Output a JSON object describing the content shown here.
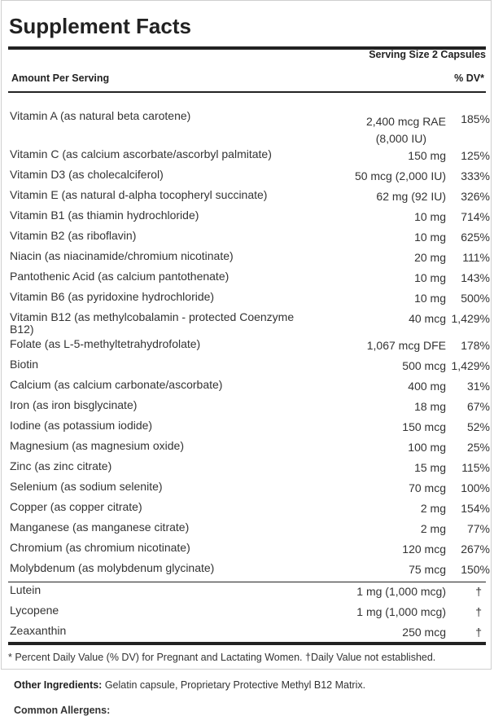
{
  "title": "Supplement Facts",
  "serving_size": "Serving Size 2 Capsules",
  "header": {
    "amount_per_serving": "Amount Per Serving",
    "dv": "% DV*"
  },
  "nutrients": [
    {
      "name": "Vitamin A (as natural beta carotene)",
      "amount": "2,400 mcg RAE",
      "amount2": "(8,000 IU)",
      "dv": "185%"
    },
    {
      "name": "Vitamin C (as calcium ascorbate/ascorbyl palmitate)",
      "amount": "150 mg",
      "dv": "125%"
    },
    {
      "name": "Vitamin D3 (as cholecalciferol)",
      "amount": "50 mcg (2,000 IU)",
      "dv": "333%"
    },
    {
      "name": "Vitamin E (as natural d-alpha tocopheryl succinate)",
      "amount": "62 mg (92 IU)",
      "dv": "326%"
    },
    {
      "name": "Vitamin B1 (as thiamin hydrochloride)",
      "amount": "10 mg",
      "dv": "714%"
    },
    {
      "name": "Vitamin B2 (as riboflavin)",
      "amount": "10 mg",
      "dv": "625%"
    },
    {
      "name": "Niacin (as niacinamide/chromium nicotinate)",
      "amount": "20 mg",
      "dv": "111%"
    },
    {
      "name": "Pantothenic Acid (as calcium pantothenate)",
      "amount": "10 mg",
      "dv": "143%"
    },
    {
      "name": "Vitamin B6 (as pyridoxine hydrochloride)",
      "amount": "10 mg",
      "dv": "500%"
    },
    {
      "name": "Vitamin B12 (as methylcobalamin - protected Coenzyme B12)",
      "amount": "40 mcg",
      "dv": "1,429%"
    },
    {
      "name": "Folate (as L-5-methyltetrahydrofolate)",
      "amount": "1,067 mcg DFE",
      "dv": "178%"
    },
    {
      "name": "Biotin",
      "amount": "500 mcg",
      "dv": "1,429%"
    },
    {
      "name": "Calcium (as calcium carbonate/ascorbate)",
      "amount": "400 mg",
      "dv": "31%"
    },
    {
      "name": "Iron (as iron bisglycinate)",
      "amount": "18 mg",
      "dv": "67%"
    },
    {
      "name": "Iodine (as potassium iodide)",
      "amount": "150 mcg",
      "dv": "52%"
    },
    {
      "name": "Magnesium (as magnesium oxide)",
      "amount": "100 mg",
      "dv": "25%"
    },
    {
      "name": "Zinc (as zinc citrate)",
      "amount": "15 mg",
      "dv": "115%"
    },
    {
      "name": "Selenium (as sodium selenite)",
      "amount": "70 mcg",
      "dv": "100%"
    },
    {
      "name": "Copper (as copper citrate)",
      "amount": "2 mg",
      "dv": "154%"
    },
    {
      "name": "Manganese (as manganese citrate)",
      "amount": "2 mg",
      "dv": "77%"
    },
    {
      "name": "Chromium (as chromium nicotinate)",
      "amount": "120 mcg",
      "dv": "267%"
    },
    {
      "name": "Molybdenum (as molybdenum glycinate)",
      "amount": "75 mcg",
      "dv": "150%"
    }
  ],
  "other_nutrients": [
    {
      "name": "Lutein",
      "amount": "1 mg (1,000 mcg)",
      "dv": "†"
    },
    {
      "name": "Lycopene",
      "amount": "1 mg (1,000 mcg)",
      "dv": "†"
    },
    {
      "name": "Zeaxanthin",
      "amount": "250 mcg",
      "dv": "†"
    }
  ],
  "footnote": "* Percent Daily Value (% DV) for Pregnant and Lactating Women. †Daily Value not established.",
  "other_ingredients": {
    "label": "Other Ingredients:",
    "text": " Gelatin capsule, Proprietary Protective Methyl B12 Matrix."
  },
  "common_allergens": {
    "label": "Common Allergens:"
  }
}
